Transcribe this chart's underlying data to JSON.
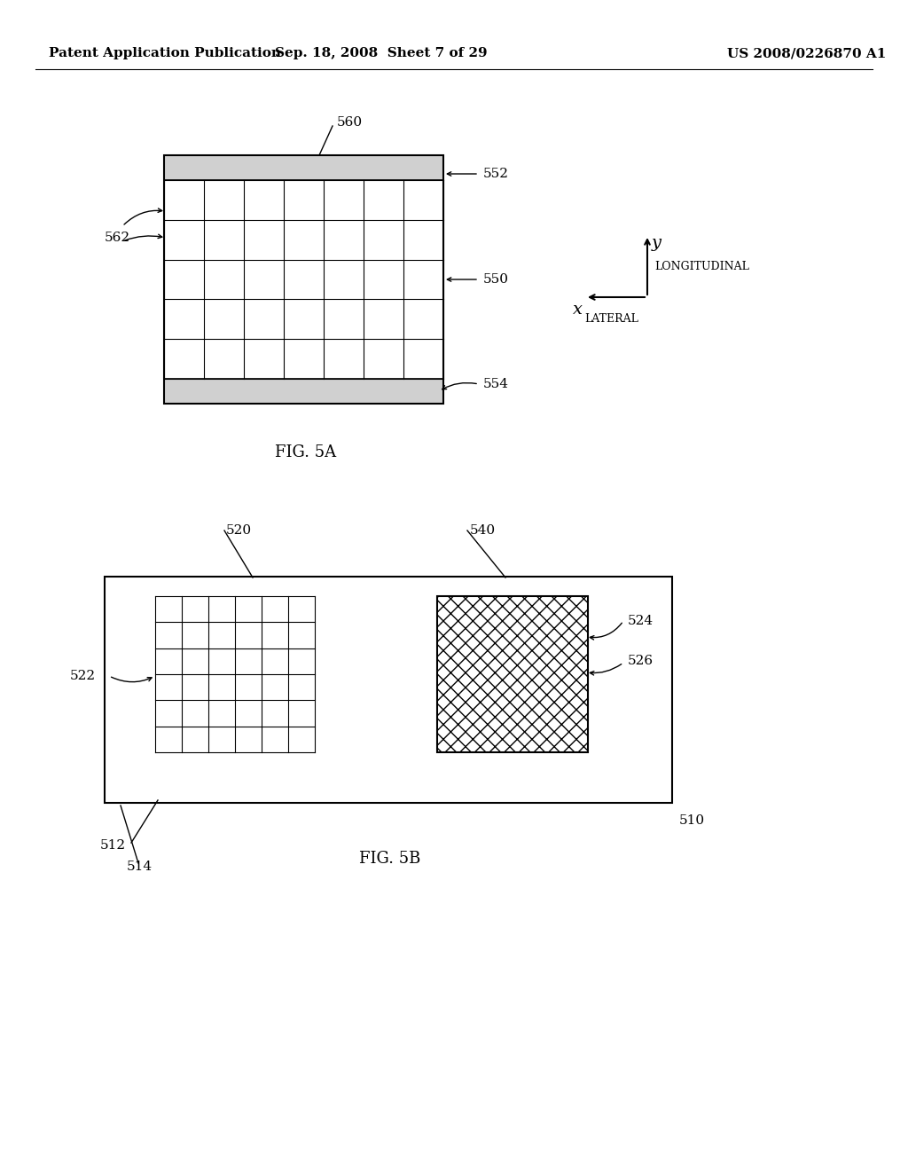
{
  "bg_color": "#ffffff",
  "header_left": "Patent Application Publication",
  "header_mid": "Sep. 18, 2008  Sheet 7 of 29",
  "header_right": "US 2008/0226870 A1",
  "fig5a_caption": "FIG. 5A",
  "fig5b_caption": "FIG. 5B",
  "label_560": "560",
  "label_552": "552",
  "label_562": "562",
  "label_550": "550",
  "label_554": "554",
  "label_520": "520",
  "label_540": "540",
  "label_522": "522",
  "label_524": "524",
  "label_526": "526",
  "label_512": "512",
  "label_510": "510",
  "label_514": "514",
  "axis_y_label": "y",
  "axis_longitudinal": "LONGITUDINAL",
  "axis_x_label": "x",
  "axis_lateral": "LATERAL",
  "line_color": "#000000",
  "grid5a_rows": 5,
  "grid5a_cols": 7,
  "grid5b_rows": 6,
  "grid5b_cols": 6
}
